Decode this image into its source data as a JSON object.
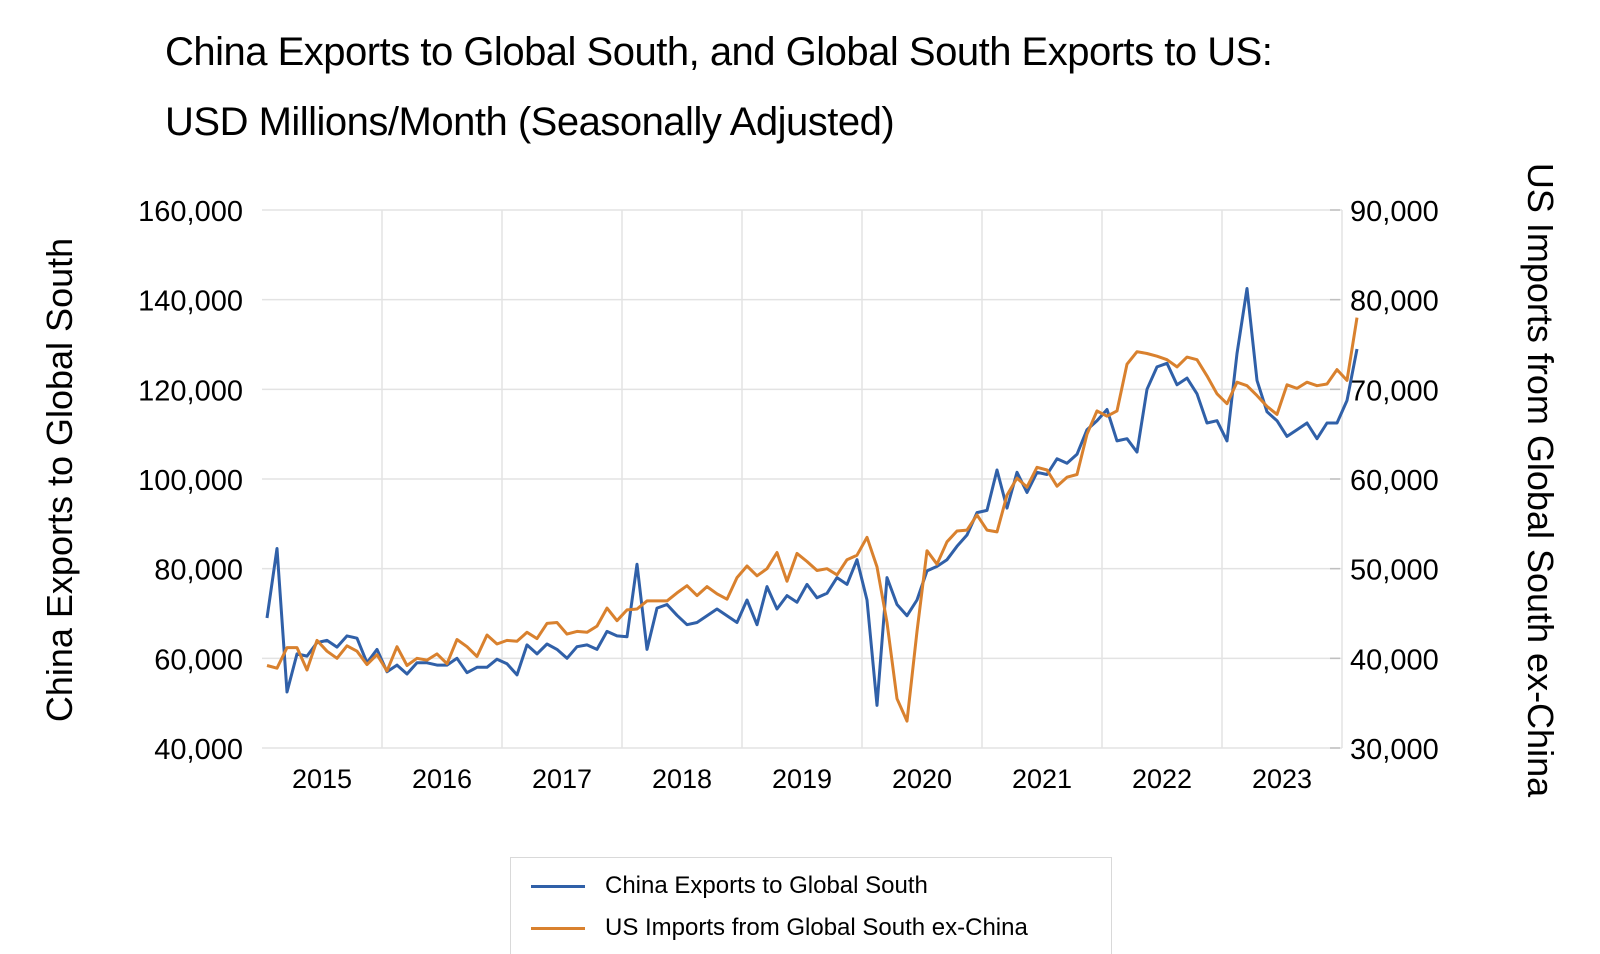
{
  "chart_data": {
    "type": "line",
    "title": "China Exports to Global South, and Global South Exports to US:",
    "subtitle": "USD Millions/Month (Seasonally Adjusted)",
    "xlabel": "",
    "ylabel": "China Exports to Global South",
    "ylabel_right": "US Imports from Global South ex-China",
    "ylim": [
      40000,
      160000
    ],
    "ylim_right": [
      30000,
      90000
    ],
    "yticks": [
      "40,000",
      "60,000",
      "80,000",
      "100,000",
      "120,000",
      "140,000",
      "160,000"
    ],
    "yticks_right": [
      "30,000",
      "40,000",
      "50,000",
      "60,000",
      "70,000",
      "80,000",
      "90,000"
    ],
    "x_start": "2015-01",
    "x_frequency": "monthly",
    "xtick_labels": [
      "2015",
      "2016",
      "2017",
      "2018",
      "2019",
      "2020",
      "2021",
      "2022",
      "2023"
    ],
    "grid": true,
    "legend_position": "bottom",
    "series": [
      {
        "name": "China Exports to Global South",
        "axis": "left",
        "color": "#3060a8",
        "values": [
          69000,
          84500,
          52500,
          61000,
          60500,
          63500,
          64000,
          62500,
          65000,
          64500,
          59000,
          62000,
          57000,
          58500,
          56500,
          59000,
          59000,
          58500,
          58500,
          60000,
          56800,
          58000,
          58000,
          59800,
          58800,
          56300,
          63000,
          61000,
          63200,
          62000,
          60000,
          62600,
          63000,
          62000,
          66000,
          65000,
          64800,
          81000,
          62000,
          71200,
          72000,
          69600,
          67500,
          68000,
          69500,
          71000,
          69500,
          68000,
          73000,
          67500,
          76000,
          71000,
          74000,
          72500,
          76500,
          73500,
          74500,
          78000,
          76500,
          82000,
          73000,
          49500,
          78000,
          72000,
          69500,
          73000,
          79500,
          80500,
          82000,
          85000,
          87500,
          92500,
          93000,
          102000,
          93500,
          101500,
          97000,
          101500,
          101000,
          104500,
          103500,
          105500,
          111000,
          113000,
          115500,
          108500,
          109000,
          106000,
          120000,
          125000,
          125800,
          121000,
          122500,
          119000,
          112500,
          113000,
          108500,
          128000,
          142500,
          122000,
          115000,
          113000,
          109500,
          111000,
          112500,
          109000,
          112500,
          112500,
          117500,
          129000
        ]
      },
      {
        "name": "US Imports from Global South ex-China",
        "axis": "right",
        "color": "#d9812e",
        "values": [
          39200,
          38900,
          41200,
          41200,
          38700,
          42000,
          40800,
          40000,
          41400,
          40800,
          39300,
          40400,
          38600,
          41300,
          39200,
          40000,
          39800,
          40500,
          39400,
          42100,
          41300,
          40200,
          42600,
          41600,
          42000,
          41900,
          42900,
          42200,
          43900,
          44000,
          42700,
          43000,
          42900,
          43600,
          45600,
          44200,
          45400,
          45500,
          46400,
          46400,
          46400,
          47300,
          48100,
          47000,
          48000,
          47200,
          46600,
          49000,
          50300,
          49200,
          50000,
          51800,
          48600,
          51700,
          50800,
          49800,
          50000,
          49300,
          51000,
          51500,
          53500,
          50200,
          44000,
          35500,
          33000,
          43000,
          52000,
          50500,
          53000,
          54200,
          54300,
          56000,
          54300,
          54100,
          58200,
          60100,
          59100,
          61300,
          61000,
          59200,
          60200,
          60500,
          65000,
          67600,
          67000,
          67600,
          72800,
          74200,
          74000,
          73700,
          73300,
          72500,
          73600,
          73300,
          71500,
          69500,
          68400,
          70800,
          70400,
          69300,
          68100,
          67200,
          70500,
          70100,
          70800,
          70400,
          70600,
          72200,
          71000,
          78000
        ]
      }
    ]
  }
}
